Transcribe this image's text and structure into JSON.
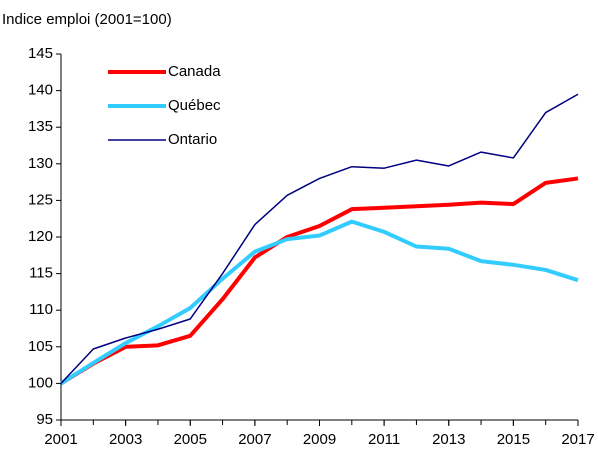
{
  "chart_data": {
    "type": "line",
    "title": "Indice emploi (2001=100)",
    "x": [
      2001,
      2002,
      2003,
      2004,
      2005,
      2006,
      2007,
      2008,
      2009,
      2010,
      2011,
      2012,
      2013,
      2014,
      2015,
      2016,
      2017
    ],
    "series": [
      {
        "name": "Canada",
        "color": "#ff0000",
        "values": [
          100,
          102.7,
          105,
          105.2,
          106.5,
          111.5,
          117.2,
          120,
          121.5,
          123.8,
          124,
          124.2,
          124.4,
          124.7,
          124.5,
          127.4,
          128
        ]
      },
      {
        "name": "Québec",
        "color": "#33ccff",
        "values": [
          100,
          102.8,
          105.5,
          107.8,
          110.3,
          114.3,
          118,
          119.7,
          120.2,
          122.1,
          120.7,
          118.7,
          118.4,
          116.7,
          116.2,
          115.5,
          114.1
        ]
      },
      {
        "name": "Ontario",
        "color": "#000080",
        "values": [
          100,
          104.7,
          106.2,
          107.4,
          108.8,
          115,
          121.7,
          125.7,
          128,
          129.6,
          129.4,
          130.5,
          129.7,
          131.6,
          130.8,
          137,
          139.5
        ]
      }
    ],
    "xlim": [
      2001,
      2017
    ],
    "xticks": [
      2001,
      2003,
      2005,
      2007,
      2009,
      2011,
      2013,
      2015,
      2017
    ],
    "ylim": [
      95,
      145
    ],
    "yticks": [
      95,
      100,
      105,
      110,
      115,
      120,
      125,
      130,
      135,
      140,
      145
    ],
    "grid": false,
    "legend": "upper left"
  }
}
